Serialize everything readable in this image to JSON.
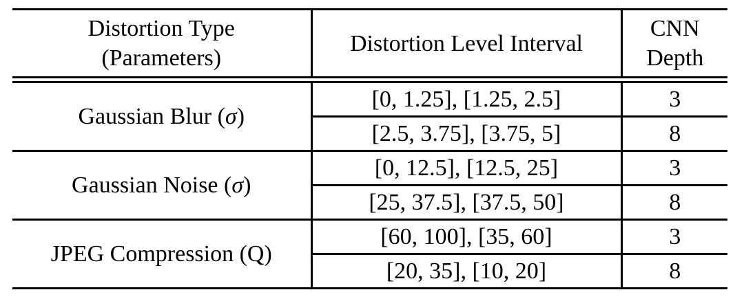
{
  "page": {
    "background_color": "#ffffff",
    "text_color": "#000000",
    "rule_color": "#000000"
  },
  "table": {
    "headers": {
      "col1": [
        "Distortion Type",
        "(Parameters)"
      ],
      "col2": "Distortion Level Interval",
      "col3": [
        "CNN",
        "Depth"
      ]
    },
    "groups": [
      {
        "type": {
          "prefix": "Gaussian Blur (",
          "symbol": "σ",
          "italic_symbol": true,
          "suffix": ")"
        },
        "rows": [
          {
            "interval": "[0, 1.25], [1.25, 2.5]",
            "depth": "3"
          },
          {
            "interval": "[2.5, 3.75], [3.75, 5]",
            "depth": "8"
          }
        ]
      },
      {
        "type": {
          "prefix": "Gaussian Noise (",
          "symbol": "σ",
          "italic_symbol": true,
          "suffix": ")"
        },
        "rows": [
          {
            "interval": "[0, 12.5], [12.5, 25]",
            "depth": "3"
          },
          {
            "interval": "[25, 37.5], [37.5, 50]",
            "depth": "8"
          }
        ]
      },
      {
        "type": {
          "prefix": "JPEG Compression (",
          "symbol": "Q",
          "italic_symbol": false,
          "suffix": ")"
        },
        "rows": [
          {
            "interval": "[60, 100], [35, 60]",
            "depth": "3"
          },
          {
            "interval": "[20, 35], [10, 20]",
            "depth": "8"
          }
        ]
      }
    ]
  }
}
